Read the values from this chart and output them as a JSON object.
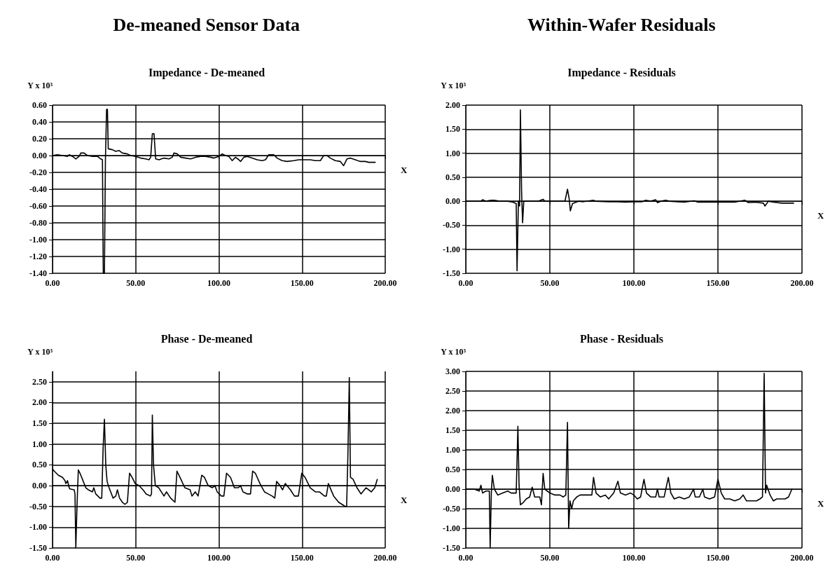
{
  "chart_data": [
    {
      "type": "line",
      "title": "Impedance - De-meaned",
      "annotations": [
        "De-meaned Sensor Data"
      ],
      "xlabel": "X",
      "ylabel": "Y x 10³",
      "xlim": [
        0,
        200
      ],
      "ylim": [
        -1.4,
        0.6
      ],
      "xticks": [
        {
          "value": 0,
          "label": "0.00"
        },
        {
          "value": 50,
          "label": "50.00"
        },
        {
          "value": 100,
          "label": "100.00"
        },
        {
          "value": 150,
          "label": "150.00"
        },
        {
          "value": 200,
          "label": "200.00"
        }
      ],
      "yticks": [
        {
          "value": -1.4,
          "label": "-1.40"
        },
        {
          "value": -1.2,
          "label": "-1.20"
        },
        {
          "value": -1,
          "label": "-1.00"
        },
        {
          "value": -0.8,
          "label": "-0.80"
        },
        {
          "value": -0.6,
          "label": "-0.60"
        },
        {
          "value": -0.4,
          "label": "-0.40"
        },
        {
          "value": -0.2,
          "label": "-0.20"
        },
        {
          "value": 0,
          "label": "0.00"
        },
        {
          "value": 0.2,
          "label": "0.20"
        },
        {
          "value": 0.4,
          "label": "0.40"
        },
        {
          "value": 0.6,
          "label": "0.60"
        }
      ],
      "grid": true,
      "marker": "none",
      "line_style": "solid",
      "series": [
        {
          "color": "#000000",
          "x": [
            0,
            3,
            6,
            9,
            10,
            12,
            14,
            16,
            17,
            19,
            21,
            24,
            27,
            29,
            30,
            30.5,
            31.2,
            31.8,
            32.5,
            33,
            33.5,
            36,
            38,
            40,
            42,
            45,
            47,
            50,
            53,
            56,
            58,
            59,
            60,
            61,
            62,
            64,
            67,
            70,
            72,
            73,
            75,
            77,
            80,
            83,
            86,
            89,
            92,
            95,
            97,
            100,
            102,
            104,
            106,
            108,
            110,
            112,
            113,
            115,
            117,
            120,
            123,
            126,
            128,
            130,
            133,
            135,
            138,
            141,
            145,
            148,
            152,
            155,
            158,
            161,
            163,
            165,
            167,
            170,
            173,
            175,
            177,
            179,
            182,
            185,
            188,
            190,
            194
          ],
          "values": [
            0,
            0.01,
            0,
            -0.01,
            0.01,
            -0.01,
            -0.04,
            -0.01,
            0.03,
            0.03,
            0,
            -0.01,
            -0.01,
            -0.04,
            -0.05,
            -1.4,
            -1.4,
            -0.05,
            0.55,
            0.55,
            0.08,
            0.07,
            0.05,
            0.06,
            0.03,
            0.02,
            0,
            -0.01,
            -0.03,
            -0.04,
            -0.05,
            -0.02,
            0.26,
            0.26,
            -0.04,
            -0.05,
            -0.03,
            -0.04,
            -0.02,
            0.03,
            0.02,
            -0.02,
            -0.03,
            -0.04,
            -0.02,
            -0.01,
            -0.01,
            -0.02,
            -0.03,
            -0.01,
            0.02,
            0,
            -0.01,
            -0.06,
            -0.02,
            -0.05,
            -0.07,
            -0.02,
            -0.01,
            -0.03,
            -0.05,
            -0.06,
            -0.05,
            0.01,
            0.01,
            -0.03,
            -0.06,
            -0.07,
            -0.06,
            -0.05,
            -0.05,
            -0.05,
            -0.06,
            -0.06,
            0,
            0,
            -0.03,
            -0.06,
            -0.07,
            -0.12,
            -0.04,
            -0.03,
            -0.05,
            -0.07,
            -0.07,
            -0.08,
            -0.08
          ]
        }
      ]
    },
    {
      "type": "line",
      "title": "Impedance - Residuals",
      "annotations": [
        "Within-Wafer Residuals"
      ],
      "xlabel": "X",
      "ylabel": "Y x 10³",
      "xlim": [
        0,
        200
      ],
      "ylim": [
        -1.5,
        2
      ],
      "xticks": [
        {
          "value": 0,
          "label": "0.00"
        },
        {
          "value": 50,
          "label": "50.00"
        },
        {
          "value": 100,
          "label": "100.00"
        },
        {
          "value": 150,
          "label": "150.00"
        },
        {
          "value": 200,
          "label": "200.00"
        }
      ],
      "yticks": [
        {
          "value": -1.5,
          "label": "-1.50"
        },
        {
          "value": -1,
          "label": "-1.00"
        },
        {
          "value": -0.5,
          "label": "-0.50"
        },
        {
          "value": 0,
          "label": "0.00"
        },
        {
          "value": 0.5,
          "label": "0.50"
        },
        {
          "value": 1,
          "label": "1.00"
        },
        {
          "value": 1.5,
          "label": "1.50"
        },
        {
          "value": 2,
          "label": "2.00"
        }
      ],
      "grid": true,
      "marker": "none",
      "line_style": "solid",
      "series": [
        {
          "color": "#000000",
          "x": [
            0,
            5,
            9,
            10,
            12,
            15,
            17,
            20,
            25,
            28,
            30,
            30.5,
            31.3,
            32,
            32.5,
            33.2,
            33.8,
            34.5,
            38,
            43,
            46,
            47,
            50,
            55,
            59,
            60.5,
            61.5,
            62.2,
            63.5,
            67,
            70,
            76,
            77,
            85,
            90,
            95,
            100,
            105,
            107,
            110,
            113,
            114,
            116,
            119,
            121,
            126,
            130,
            136,
            138,
            145,
            150,
            155,
            160,
            166,
            168,
            172,
            177,
            178,
            180,
            183,
            188,
            192,
            195
          ],
          "values": [
            0,
            0,
            0,
            0.03,
            0,
            0.02,
            0.02,
            0,
            0,
            -0.02,
            -0.05,
            -1.45,
            0,
            -0.1,
            1.9,
            0.2,
            -0.45,
            0,
            0,
            0,
            0.04,
            0,
            0,
            0,
            0,
            0.25,
            0.05,
            -0.2,
            -0.05,
            0,
            -0.01,
            0.02,
            0,
            -0.01,
            -0.01,
            -0.02,
            -0.01,
            -0.01,
            0.02,
            0,
            0.03,
            -0.03,
            0,
            0.02,
            0,
            -0.01,
            -0.02,
            0.01,
            -0.02,
            -0.02,
            -0.02,
            -0.02,
            -0.02,
            0.02,
            -0.03,
            -0.02,
            -0.04,
            -0.1,
            0,
            -0.02,
            -0.04,
            -0.04,
            -0.04
          ]
        }
      ]
    },
    {
      "type": "line",
      "title": "Phase - De-meaned",
      "xlabel": "X",
      "ylabel": "Y x 10³",
      "xlim": [
        0,
        200
      ],
      "ylim": [
        -1.5,
        2.75
      ],
      "xticks": [
        {
          "value": 0,
          "label": "0.00"
        },
        {
          "value": 50,
          "label": "50.00"
        },
        {
          "value": 100,
          "label": "100.00"
        },
        {
          "value": 150,
          "label": "150.00"
        },
        {
          "value": 200,
          "label": "200.00"
        }
      ],
      "yticks": [
        {
          "value": -1.5,
          "label": "-1.50"
        },
        {
          "value": -1,
          "label": "-1.00"
        },
        {
          "value": -0.5,
          "label": "-0.50"
        },
        {
          "value": 0,
          "label": "0.00"
        },
        {
          "value": 0.5,
          "label": "0.50"
        },
        {
          "value": 1,
          "label": "1.00"
        },
        {
          "value": 1.5,
          "label": "1.50"
        },
        {
          "value": 2,
          "label": "2.00"
        },
        {
          "value": 2.5,
          "label": "2.50"
        }
      ],
      "grid": true,
      "marker": "none",
      "line_style": "solid",
      "series": [
        {
          "color": "#000000",
          "x": [
            0,
            1,
            3.5,
            6,
            7.5,
            8,
            9,
            10,
            10.5,
            13,
            13.5,
            14,
            14.7,
            15.5,
            16.5,
            18.5,
            20,
            21.5,
            24,
            24.8,
            26,
            28.5,
            29.6,
            30.4,
            31.2,
            32,
            32.8,
            34,
            36.4,
            38,
            39,
            40.3,
            42,
            43.5,
            45,
            46.3,
            47.8,
            49.7,
            52,
            54.4,
            56.3,
            58.8,
            59.5,
            60,
            60.7,
            61.8,
            63.8,
            66.2,
            67,
            68.5,
            71,
            73.6,
            74.8,
            77.2,
            79.5,
            82.7,
            83.8,
            85.8,
            87.5,
            89.7,
            91.3,
            93.6,
            96,
            97.6,
            99,
            101.5,
            103,
            104.6,
            107,
            109.3,
            111.7,
            113,
            114.5,
            117.2,
            119,
            120.3,
            121.9,
            124.7,
            127.4,
            129.7,
            132,
            133.6,
            134.7,
            136.8,
            138.3,
            139.9,
            143,
            145.4,
            147.8,
            149.8,
            151.8,
            154.9,
            158,
            160.4,
            163.5,
            164.6,
            165.8,
            169,
            172,
            176,
            176.8,
            177.6,
            178.4,
            179.1,
            180.7,
            183,
            185.4,
            188.5,
            191.6,
            193.7,
            195.2
          ],
          "values": [
            0.4,
            0.35,
            0.25,
            0.2,
            0.12,
            0.05,
            0.12,
            -0.05,
            -0.08,
            -0.1,
            -0.2,
            -1.5,
            -0.5,
            0.38,
            0.3,
            0.1,
            -0.05,
            -0.1,
            -0.15,
            -0.05,
            -0.2,
            -0.3,
            -0.3,
            0.9,
            1.6,
            0.5,
            0.1,
            -0.05,
            -0.3,
            -0.25,
            -0.1,
            -0.3,
            -0.4,
            -0.45,
            -0.4,
            0.3,
            0.2,
            0.05,
            0,
            -0.1,
            -0.2,
            -0.25,
            -0.2,
            1.7,
            0.5,
            0,
            -0.05,
            -0.2,
            -0.25,
            -0.15,
            -0.3,
            -0.4,
            0.35,
            0.15,
            -0.05,
            -0.1,
            -0.25,
            -0.15,
            -0.25,
            0.25,
            0.2,
            0,
            -0.05,
            0,
            -0.15,
            -0.25,
            -0.25,
            0.3,
            0.2,
            -0.05,
            -0.05,
            0,
            -0.15,
            -0.2,
            -0.2,
            0.35,
            0.3,
            0.05,
            -0.15,
            -0.2,
            -0.25,
            -0.3,
            0.1,
            0,
            -0.1,
            0.05,
            -0.1,
            -0.25,
            -0.25,
            0.3,
            0.2,
            -0.05,
            -0.15,
            -0.15,
            -0.25,
            -0.25,
            0.05,
            -0.25,
            -0.4,
            -0.5,
            -0.5,
            0.8,
            2.6,
            0.2,
            0.15,
            -0.05,
            -0.2,
            -0.05,
            -0.15,
            -0.05,
            0.15
          ]
        }
      ]
    },
    {
      "type": "line",
      "title": "Phase - Residuals",
      "xlabel": "X",
      "ylabel": "Y x 10³",
      "xlim": [
        0,
        200
      ],
      "ylim": [
        -1.5,
        3
      ],
      "xticks": [
        {
          "value": 0,
          "label": "0.00"
        },
        {
          "value": 50,
          "label": "50.00"
        },
        {
          "value": 100,
          "label": "100.00"
        },
        {
          "value": 150,
          "label": "150.00"
        },
        {
          "value": 200,
          "label": "200.00"
        }
      ],
      "yticks": [
        {
          "value": -1.5,
          "label": "-1.50"
        },
        {
          "value": -1,
          "label": "-1.00"
        },
        {
          "value": -0.5,
          "label": "-0.50"
        },
        {
          "value": 0,
          "label": "0.00"
        },
        {
          "value": 0.5,
          "label": "0.50"
        },
        {
          "value": 1,
          "label": "1.00"
        },
        {
          "value": 1.5,
          "label": "1.50"
        },
        {
          "value": 2,
          "label": "2.00"
        },
        {
          "value": 2.5,
          "label": "2.50"
        },
        {
          "value": 3,
          "label": "3.00"
        }
      ],
      "grid": true,
      "marker": "none",
      "line_style": "solid",
      "series": [
        {
          "color": "#000000",
          "x": [
            0,
            5,
            8,
            9,
            10,
            12,
            14,
            14.5,
            15.2,
            15.8,
            17,
            19,
            22,
            25,
            27,
            30,
            31,
            31.7,
            32.5,
            34,
            36,
            38,
            39.5,
            41,
            44,
            45,
            46,
            47,
            50,
            53,
            56,
            58,
            59.5,
            60.5,
            61.2,
            62,
            63,
            64,
            66,
            68,
            70,
            73,
            75,
            76,
            77.5,
            80,
            83,
            85,
            88,
            90.5,
            92,
            95,
            98,
            100,
            102,
            104,
            106,
            107.5,
            110,
            113,
            114,
            115,
            118,
            120.5,
            122,
            124,
            127,
            130,
            133,
            135.5,
            136.5,
            139,
            141,
            142,
            145,
            148,
            150,
            152,
            154,
            157,
            160,
            163,
            165,
            167,
            170,
            173,
            175,
            176.5,
            177.5,
            178.3,
            179,
            181,
            183,
            185,
            188,
            190,
            192,
            194
          ],
          "values": [
            0,
            0,
            -0.05,
            0.1,
            -0.1,
            -0.05,
            -0.05,
            -1.5,
            -0.1,
            0.35,
            0,
            -0.15,
            -0.1,
            -0.05,
            -0.1,
            -0.1,
            1.6,
            0.1,
            -0.4,
            -0.35,
            -0.25,
            -0.2,
            0.05,
            -0.2,
            -0.2,
            -0.4,
            0.4,
            0,
            -0.1,
            -0.15,
            -0.15,
            -0.2,
            -0.15,
            1.7,
            -1,
            -0.3,
            -0.5,
            -0.3,
            -0.2,
            -0.15,
            -0.15,
            -0.15,
            -0.15,
            0.3,
            -0.1,
            -0.2,
            -0.15,
            -0.25,
            -0.1,
            0.2,
            -0.1,
            -0.15,
            -0.1,
            -0.15,
            -0.25,
            -0.2,
            0.25,
            -0.1,
            -0.2,
            -0.2,
            0,
            -0.2,
            -0.2,
            0.3,
            -0.1,
            -0.25,
            -0.2,
            -0.25,
            -0.2,
            0,
            -0.2,
            -0.2,
            0,
            -0.2,
            -0.25,
            -0.2,
            0.25,
            -0.1,
            -0.25,
            -0.25,
            -0.3,
            -0.25,
            -0.15,
            -0.3,
            -0.3,
            -0.3,
            -0.25,
            -0.2,
            2.95,
            -0.1,
            0.1,
            -0.15,
            -0.3,
            -0.25,
            -0.25,
            -0.25,
            -0.2,
            0
          ]
        }
      ]
    }
  ]
}
